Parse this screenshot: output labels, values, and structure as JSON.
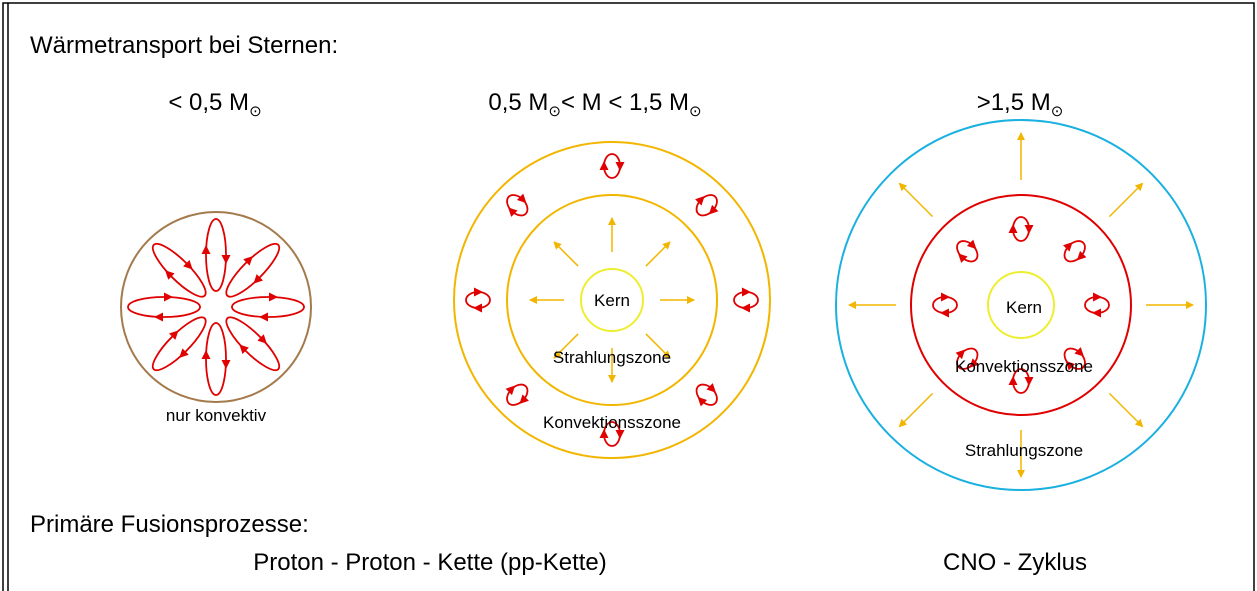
{
  "title": "Wärmetransport bei Sternen:",
  "columns": [
    {
      "heading": [
        {
          "text": "< 0,5 M"
        },
        {
          "sub": "⊙"
        }
      ],
      "labels": [
        "nur konvektiv"
      ]
    },
    {
      "heading": [
        {
          "text": "0,5 M"
        },
        {
          "sub": "⊙"
        },
        {
          "text": "< M < 1,5 M"
        },
        {
          "sub": "⊙"
        }
      ],
      "labels": [
        "Kern",
        "Strahlungszone",
        "Konvektionsszone"
      ]
    },
    {
      "heading": [
        {
          "text": ">1,5 M"
        },
        {
          "sub": "⊙"
        }
      ],
      "labels": [
        "Kern",
        "Konvektionsszone",
        "Strahlungszone"
      ]
    }
  ],
  "fusion": {
    "title": "Primäre Fusionsprozesse:",
    "processes": [
      "Proton - Proton - Kette (pp-Kette)",
      "CNO - Zyklus"
    ]
  }
}
